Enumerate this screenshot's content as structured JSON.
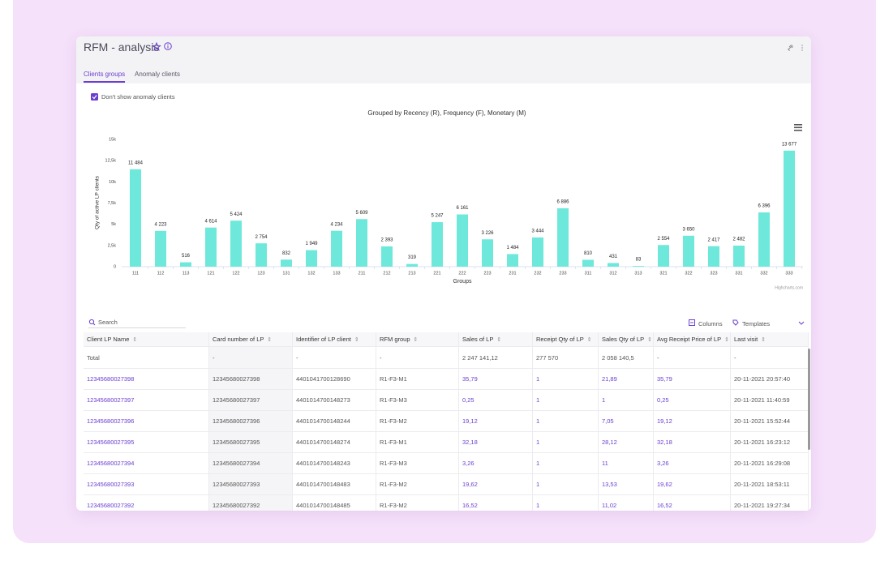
{
  "header": {
    "title": "RFM - analysis"
  },
  "tabs": [
    "Clients groups",
    "Anomaly clients"
  ],
  "filter": {
    "label": "Don't show anomaly clients"
  },
  "chart_data": {
    "type": "bar",
    "title": "Grouped by Recency (R), Frequency (F), Monetary (M)",
    "x_label": "Groups",
    "y_label": "Qty of active LP clients",
    "credits": "Highcharts.com",
    "categories": [
      "111",
      "112",
      "113",
      "121",
      "122",
      "123",
      "131",
      "132",
      "133",
      "211",
      "212",
      "213",
      "221",
      "222",
      "223",
      "231",
      "232",
      "233",
      "311",
      "312",
      "313",
      "321",
      "322",
      "323",
      "331",
      "332",
      "333"
    ],
    "values": [
      11484,
      4223,
      516,
      4614,
      5424,
      2754,
      832,
      1949,
      4234,
      5609,
      2393,
      319,
      5247,
      6161,
      3226,
      1484,
      3444,
      6886,
      810,
      431,
      83,
      2554,
      3650,
      2417,
      2482,
      6396,
      13677
    ],
    "value_labels": [
      "11 484",
      "4 223",
      "516",
      "4 614",
      "5 424",
      "2 754",
      "832",
      "1 949",
      "4 234",
      "5 609",
      "2 393",
      "319",
      "5 247",
      "6 161",
      "3 226",
      "1 484",
      "3 444",
      "6 886",
      "810",
      "431",
      "83",
      "2 554",
      "3 650",
      "2 417",
      "2 482",
      "6 396",
      "13 677"
    ],
    "color": "#6ee8db",
    "ylim": [
      0,
      15000
    ],
    "yticks": [
      0,
      {
        "value": 2500,
        "label": "2,5k"
      },
      {
        "value": 5000,
        "label": "5k"
      },
      {
        "value": 7500,
        "label": "7,5k"
      },
      {
        "value": 10000,
        "label": "10k"
      },
      {
        "value": 12500,
        "label": "12,5k"
      },
      {
        "value": 15000,
        "label": "15k"
      }
    ],
    "grid": false
  },
  "toolbar": {
    "search": "Search",
    "columns": "Columns",
    "templates": "Templates"
  },
  "table": {
    "columns": [
      "Client LP Name",
      "Card number of LP",
      "Identifier of LP client",
      "RFM group",
      "Sales of LP",
      "Receipt Qty of LP",
      "Sales Qty of LP",
      "Avg Receipt Price of LP",
      "Last visit"
    ],
    "total": [
      "Total",
      "-",
      "-",
      "-",
      "2 247 141,12",
      "277 570",
      "2 058 140,5",
      "-",
      "-"
    ],
    "rows": [
      [
        "12345680027398",
        "12345680027398",
        "4401041700128690",
        "R1-F3-M1",
        "35,79",
        "1",
        "21,89",
        "35,79",
        "20-11-2021 20:57:40"
      ],
      [
        "12345680027397",
        "12345680027397",
        "4401014700148273",
        "R1-F3-M3",
        "0,25",
        "1",
        "1",
        "0,25",
        "20-11-2021 11:40:59"
      ],
      [
        "12345680027396",
        "12345680027396",
        "4401014700148244",
        "R1-F3-M2",
        "19,12",
        "1",
        "7,05",
        "19,12",
        "20-11-2021 15:52:44"
      ],
      [
        "12345680027395",
        "12345680027395",
        "4401014700148274",
        "R1-F3-M1",
        "32,18",
        "1",
        "28,12",
        "32,18",
        "20-11-2021 16:23:12"
      ],
      [
        "12345680027394",
        "12345680027394",
        "4401014700148243",
        "R1-F3-M3",
        "3,26",
        "1",
        "11",
        "3,26",
        "20-11-2021 16:29:08"
      ],
      [
        "12345680027393",
        "12345680027393",
        "4401014700148483",
        "R1-F3-M2",
        "19,62",
        "1",
        "13,53",
        "19,62",
        "20-11-2021 18:53:11"
      ],
      [
        "12345680027392",
        "12345680027392",
        "4401014700148485",
        "R1-F3-M2",
        "16,52",
        "1",
        "11,02",
        "16,52",
        "20-11-2021 19:27:34"
      ]
    ]
  }
}
